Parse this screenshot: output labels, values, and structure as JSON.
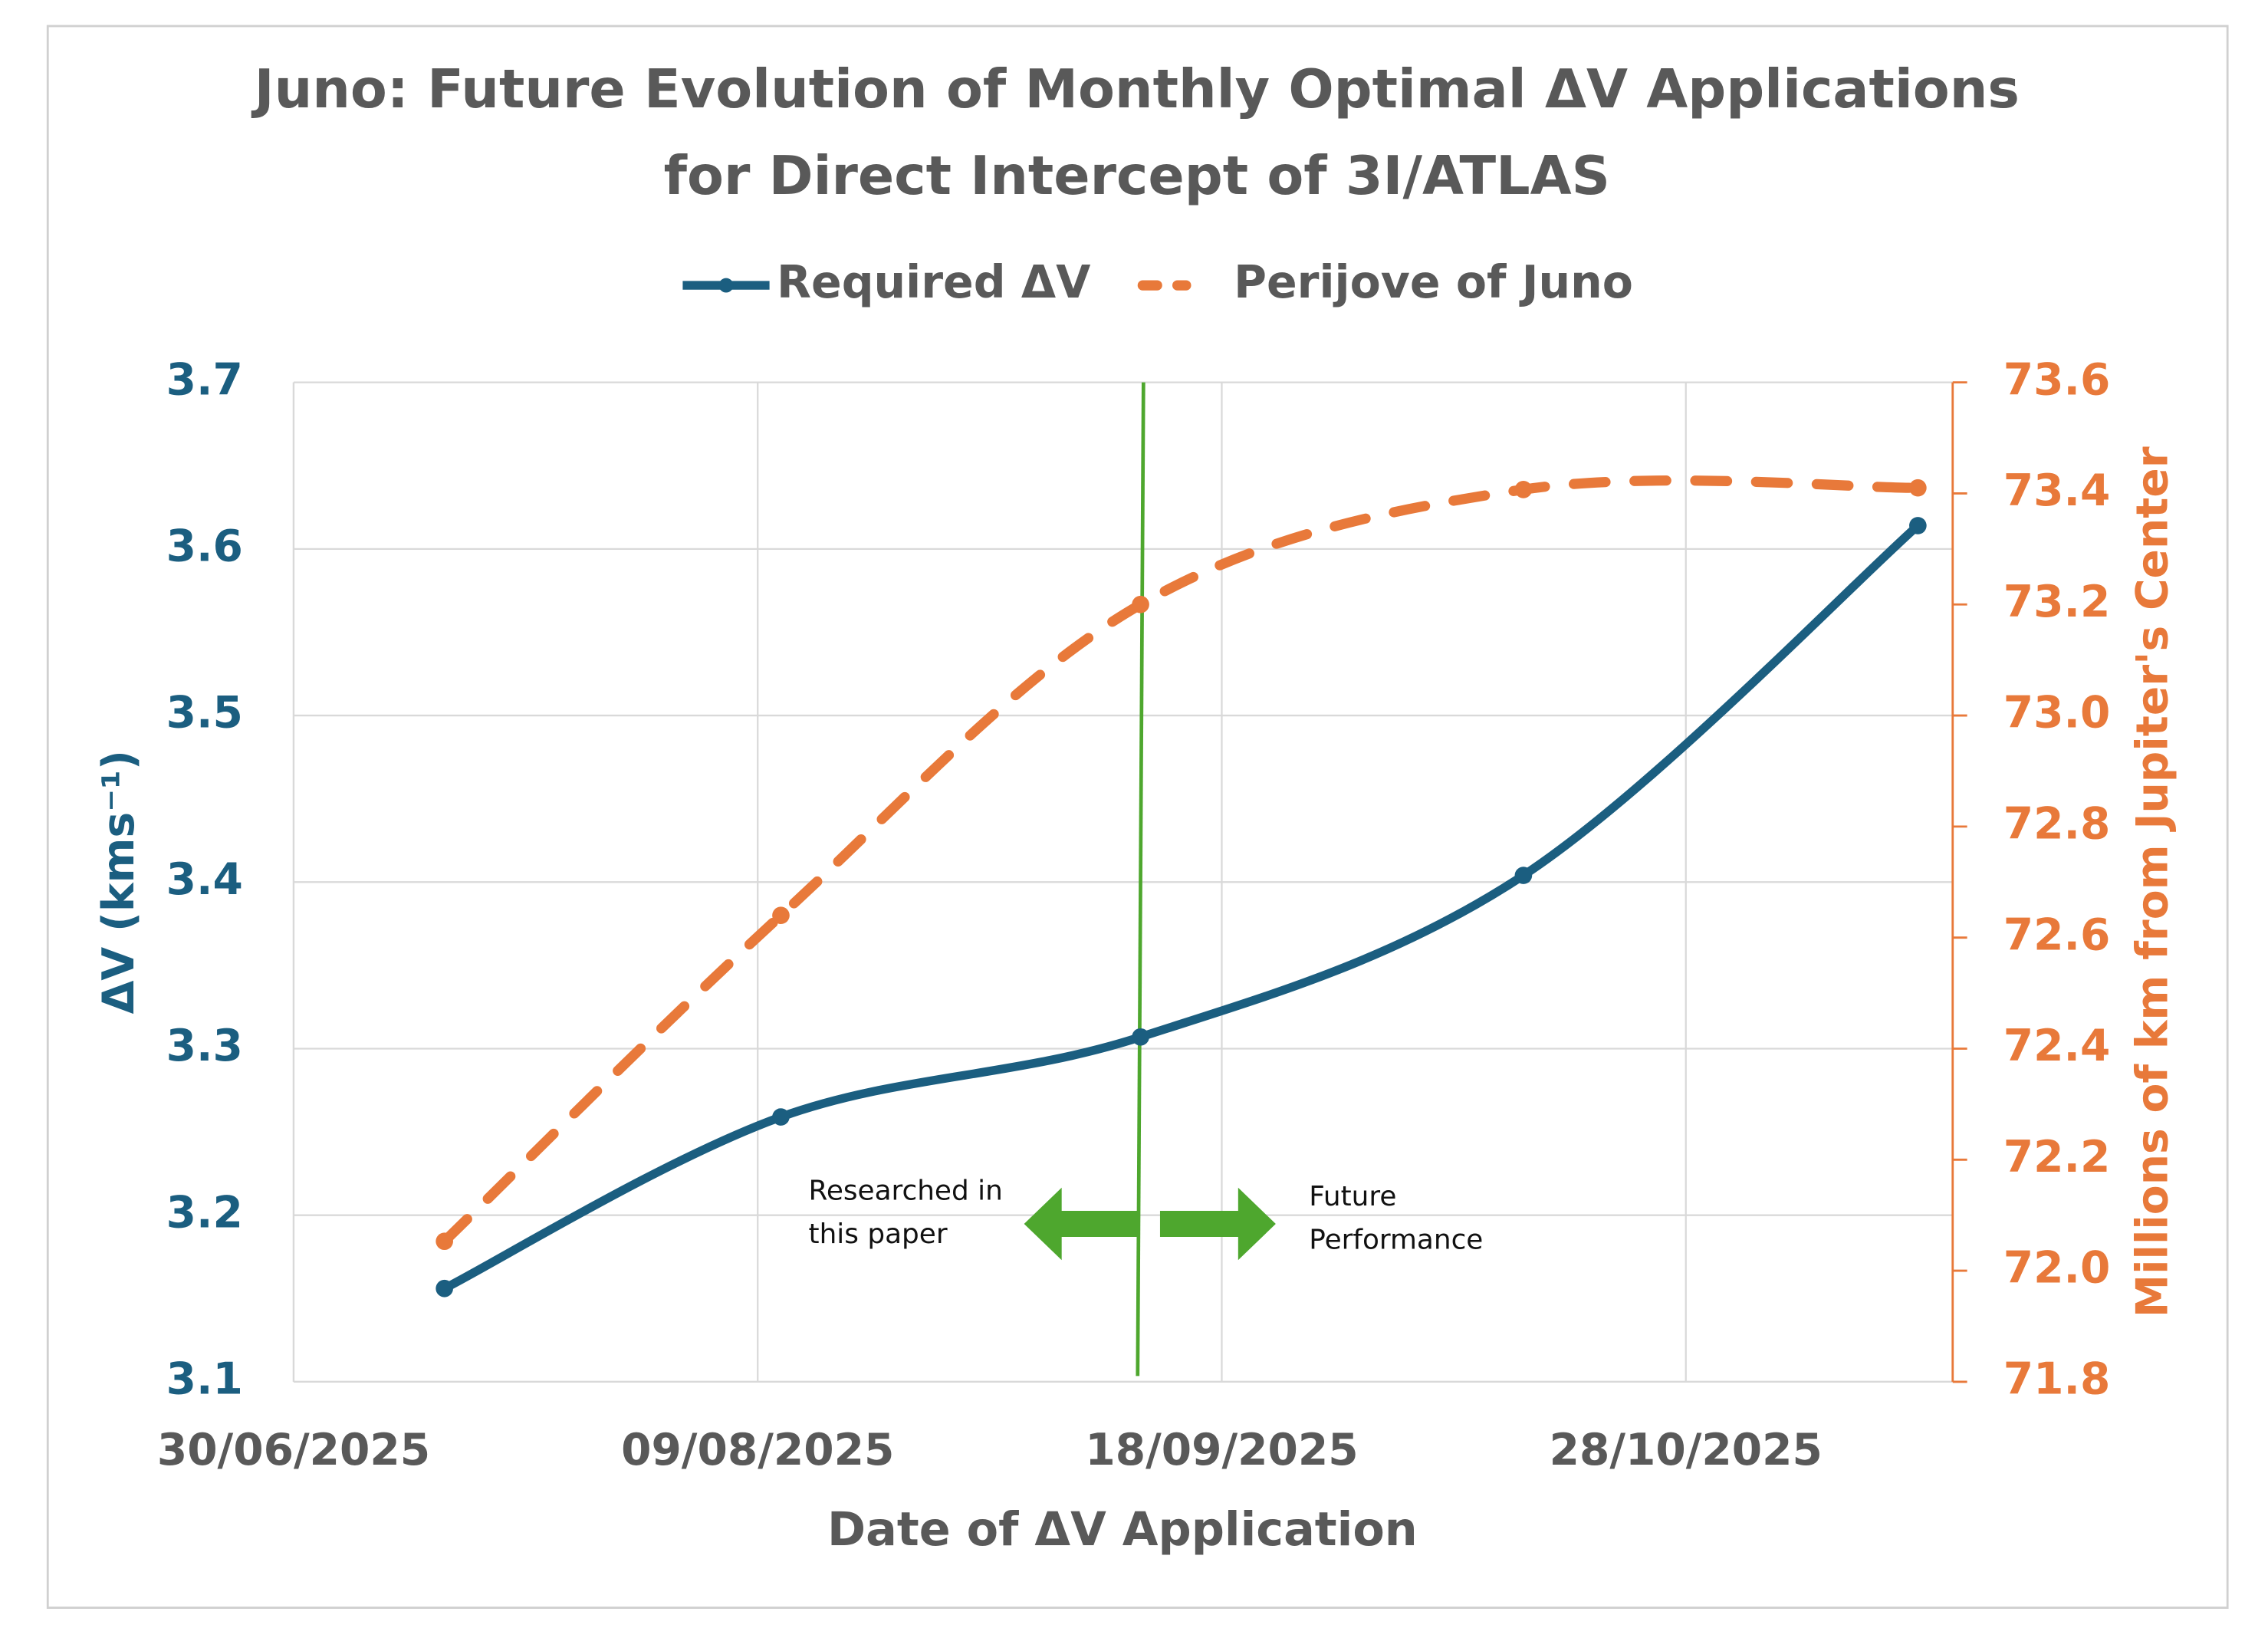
{
  "chart_data": {
    "type": "line",
    "title": [
      "Juno: Future Evolution of Monthly Optimal ΔV Applications",
      "for Direct Intercept of 3I/ATLAS"
    ],
    "x_label": "Date of ΔV Application",
    "y_label": "ΔV (kms⁻¹)",
    "y2_label": "Millions of km from Jupiter's Center",
    "x": [
      "13/07/2025",
      "11/08/2025",
      "11/09/2025",
      "14/10/2025",
      "17/11/2025"
    ],
    "xlim": [
      "30/06/2025",
      "20/11/2025"
    ],
    "xticks": [
      "30/06/2025",
      "09/08/2025",
      "18/09/2025",
      "28/10/2025"
    ],
    "ylim": [
      3.1,
      3.7
    ],
    "yticks": [
      3.1,
      3.2,
      3.3,
      3.4,
      3.5,
      3.6,
      3.7
    ],
    "y2lim": [
      71.8,
      73.6
    ],
    "y2ticks": [
      71.8,
      {
        "value": 72,
        "label": "72.0"
      },
      72.2,
      72.4,
      72.6,
      72.8,
      {
        "value": 73,
        "label": "73.0"
      },
      73.2,
      73.4,
      73.6
    ],
    "grid": true,
    "legend": "top",
    "series": [
      {
        "name": "Required ΔV",
        "color": "#1b5e80",
        "style": "solid",
        "values": [
          3.156,
          3.259,
          3.307,
          3.404,
          3.614
        ]
      },
      {
        "name": "Perijove of Juno",
        "color": "#e8793a",
        "style": "dashed",
        "axis": "y2",
        "values": [
          72.053,
          72.64,
          73.2,
          73.407,
          73.41
        ]
      }
    ],
    "divider": {
      "x": "11/09/2025",
      "color": "#4ea72e"
    },
    "annotations": [
      [
        "Researched in",
        "this paper"
      ],
      [
        "Future",
        "Performance"
      ]
    ]
  }
}
